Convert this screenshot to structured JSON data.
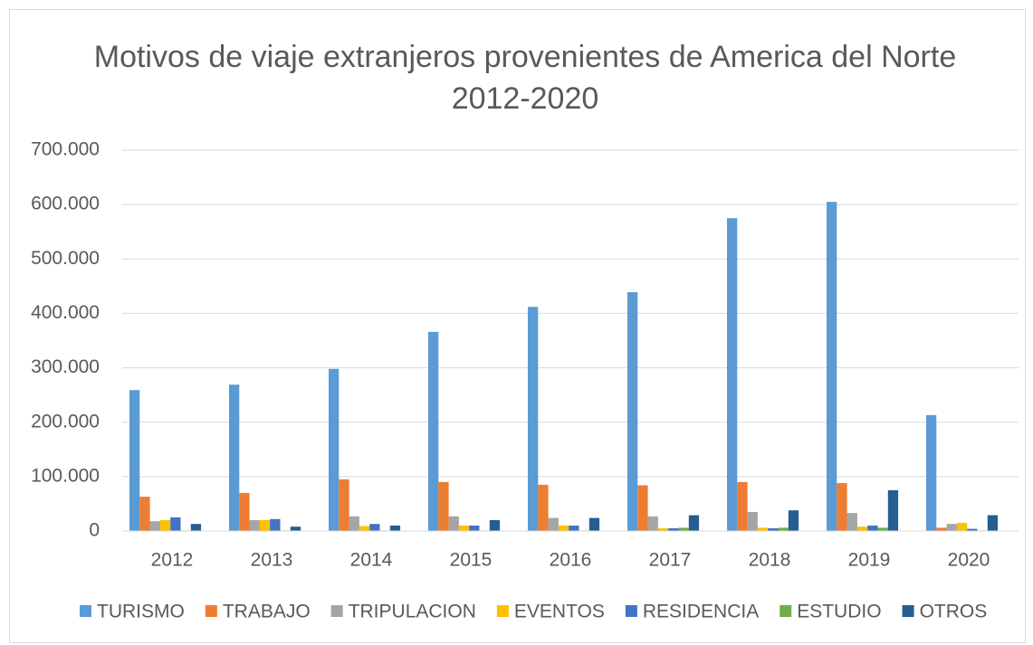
{
  "chart_data": {
    "type": "bar",
    "title": "Motivos de viaje extranjeros provenientes de America del Norte  2012-2020",
    "categories": [
      "2012",
      "2013",
      "2014",
      "2015",
      "2016",
      "2017",
      "2018",
      "2019",
      "2020"
    ],
    "series": [
      {
        "name": "TURISMO",
        "color": "#5b9bd5",
        "values": [
          259000,
          269000,
          298000,
          366000,
          412000,
          439000,
          575000,
          605000,
          213000
        ]
      },
      {
        "name": "TRABAJO",
        "color": "#ed7d31",
        "values": [
          63000,
          70000,
          95000,
          90000,
          85000,
          84000,
          90000,
          88000,
          6000
        ]
      },
      {
        "name": "TRIPULACION",
        "color": "#a5a5a5",
        "values": [
          18000,
          20000,
          27000,
          27000,
          24000,
          27000,
          35000,
          33000,
          13000
        ]
      },
      {
        "name": "EVENTOS",
        "color": "#ffc000",
        "values": [
          20000,
          20000,
          9000,
          10000,
          10000,
          5000,
          6000,
          8000,
          15000
        ]
      },
      {
        "name": "RESIDENCIA",
        "color": "#4472c4",
        "values": [
          25000,
          22000,
          13000,
          10000,
          10000,
          5000,
          5000,
          10000,
          4000
        ]
      },
      {
        "name": "ESTUDIO",
        "color": "#70ad47",
        "values": [
          1000,
          1000,
          1000,
          1000,
          1000,
          6000,
          6000,
          6000,
          1000
        ]
      },
      {
        "name": "OTROS",
        "color": "#255e91",
        "values": [
          13000,
          8000,
          10000,
          20000,
          24000,
          29000,
          38000,
          75000,
          29000
        ]
      }
    ],
    "ylim": [
      0,
      700000
    ],
    "yticks": [
      0,
      {
        "value": 100000,
        "label": "100.000"
      },
      {
        "value": 200000,
        "label": "200.000"
      },
      {
        "value": 300000,
        "label": "300.000"
      },
      {
        "value": 400000,
        "label": "400.000"
      },
      {
        "value": 500000,
        "label": "500.000"
      },
      {
        "value": 600000,
        "label": "600.000"
      },
      {
        "value": 700000,
        "label": "700.000"
      }
    ],
    "grid": true,
    "legend": "bottom"
  }
}
